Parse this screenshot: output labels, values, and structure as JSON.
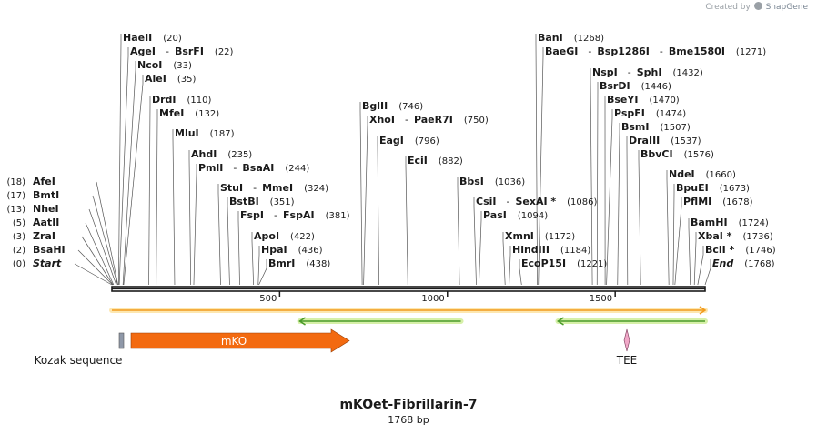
{
  "credit": {
    "prefix": "Created by",
    "brand": "SnapGene",
    "brand_icon": "snapgene-logo-icon"
  },
  "plasmid": {
    "name": "mKOet-Fibrillarin-7",
    "length_label": "1768 bp",
    "length": 1768
  },
  "axis": {
    "ticks": [
      {
        "pos": 500,
        "label": "500"
      },
      {
        "pos": 1000,
        "label": "1000"
      },
      {
        "pos": 1500,
        "label": "1500"
      }
    ]
  },
  "sites": [
    {
      "side": "L",
      "names": [
        "Start"
      ],
      "italic": true,
      "num": "(0)",
      "pos": 0
    },
    {
      "side": "L",
      "names": [
        "BsaHI"
      ],
      "num": "(2)",
      "pos": 2
    },
    {
      "side": "L",
      "names": [
        "ZraI"
      ],
      "num": "(3)",
      "pos": 3
    },
    {
      "side": "L",
      "names": [
        "AatII"
      ],
      "num": "(5)",
      "pos": 5
    },
    {
      "side": "L",
      "names": [
        "NheI"
      ],
      "num": "(13)",
      "pos": 13
    },
    {
      "side": "L",
      "names": [
        "BmtI"
      ],
      "num": "(17)",
      "pos": 17
    },
    {
      "side": "L",
      "names": [
        "AfeI"
      ],
      "num": "(18)",
      "pos": 18
    },
    {
      "side": "R",
      "names": [
        "HaeII"
      ],
      "num": "(20)",
      "pos": 20
    },
    {
      "side": "R",
      "names": [
        "AgeI",
        "BsrFI"
      ],
      "num": "(22)",
      "pos": 22
    },
    {
      "side": "R",
      "names": [
        "NcoI"
      ],
      "num": "(33)",
      "pos": 33
    },
    {
      "side": "R",
      "names": [
        "AleI"
      ],
      "num": "(35)",
      "pos": 35
    },
    {
      "side": "R",
      "names": [
        "DrdI"
      ],
      "num": "(110)",
      "pos": 110
    },
    {
      "side": "R",
      "names": [
        "MfeI"
      ],
      "num": "(132)",
      "pos": 132
    },
    {
      "side": "R",
      "names": [
        "MluI"
      ],
      "num": "(187)",
      "pos": 187
    },
    {
      "side": "R",
      "names": [
        "AhdI"
      ],
      "num": "(235)",
      "pos": 235
    },
    {
      "side": "R",
      "names": [
        "PmlI",
        "BsaAI"
      ],
      "num": "(244)",
      "pos": 244
    },
    {
      "side": "R",
      "names": [
        "StuI",
        "MmeI"
      ],
      "num": "(324)",
      "pos": 324
    },
    {
      "side": "R",
      "names": [
        "BstBI"
      ],
      "num": "(351)",
      "pos": 351
    },
    {
      "side": "R",
      "names": [
        "FspI",
        "FspAI"
      ],
      "num": "(381)",
      "pos": 381
    },
    {
      "side": "R",
      "names": [
        "ApoI"
      ],
      "num": "(422)",
      "pos": 422
    },
    {
      "side": "R",
      "names": [
        "HpaI"
      ],
      "num": "(436)",
      "pos": 436
    },
    {
      "side": "R",
      "names": [
        "BmrI"
      ],
      "num": "(438)",
      "pos": 438
    },
    {
      "side": "R",
      "names": [
        "BglII"
      ],
      "num": "(746)",
      "pos": 746
    },
    {
      "side": "R",
      "names": [
        "XhoI",
        "PaeR7I"
      ],
      "num": "(750)",
      "pos": 750
    },
    {
      "side": "R",
      "names": [
        "EagI"
      ],
      "num": "(796)",
      "pos": 796
    },
    {
      "side": "R",
      "names": [
        "EciI"
      ],
      "num": "(882)",
      "pos": 882
    },
    {
      "side": "R",
      "names": [
        "BbsI"
      ],
      "num": "(1036)",
      "pos": 1036
    },
    {
      "side": "R",
      "names": [
        "CsiI",
        "SexAI *"
      ],
      "num": "(1086)",
      "pos": 1086
    },
    {
      "side": "R",
      "names": [
        "PasI"
      ],
      "num": "(1094)",
      "pos": 1094
    },
    {
      "side": "R",
      "names": [
        "XmnI"
      ],
      "num": "(1172)",
      "pos": 1172
    },
    {
      "side": "R",
      "names": [
        "HindIII"
      ],
      "num": "(1184)",
      "pos": 1184
    },
    {
      "side": "R",
      "names": [
        "EcoP15I"
      ],
      "num": "(1221)",
      "pos": 1221
    },
    {
      "side": "R",
      "names": [
        "BanI"
      ],
      "num": "(1268)",
      "pos": 1268
    },
    {
      "side": "R",
      "names": [
        "BaeGI",
        "Bsp1286I",
        "Bme1580I"
      ],
      "num": "(1271)",
      "pos": 1271
    },
    {
      "side": "R",
      "names": [
        "NspI",
        "SphI"
      ],
      "num": "(1432)",
      "pos": 1432
    },
    {
      "side": "R",
      "names": [
        "BsrDI"
      ],
      "num": "(1446)",
      "pos": 1446
    },
    {
      "side": "R",
      "names": [
        "BseYI"
      ],
      "num": "(1470)",
      "pos": 1470
    },
    {
      "side": "R",
      "names": [
        "PspFI"
      ],
      "num": "(1474)",
      "pos": 1474
    },
    {
      "side": "R",
      "names": [
        "BsmI"
      ],
      "num": "(1507)",
      "pos": 1507
    },
    {
      "side": "R",
      "names": [
        "DraIII"
      ],
      "num": "(1537)",
      "pos": 1537
    },
    {
      "side": "R",
      "names": [
        "BbvCI"
      ],
      "num": "(1576)",
      "pos": 1576
    },
    {
      "side": "R",
      "names": [
        "NdeI"
      ],
      "num": "(1660)",
      "pos": 1660
    },
    {
      "side": "R",
      "names": [
        "BpuEI"
      ],
      "num": "(1673)",
      "pos": 1673
    },
    {
      "side": "R",
      "names": [
        "PflMI"
      ],
      "num": "(1678)",
      "pos": 1678
    },
    {
      "side": "R",
      "names": [
        "BamHI"
      ],
      "num": "(1724)",
      "pos": 1724
    },
    {
      "side": "R",
      "names": [
        "XbaI *"
      ],
      "num": "(1736)",
      "pos": 1736
    },
    {
      "side": "R",
      "names": [
        "BclI *"
      ],
      "num": "(1746)",
      "pos": 1746
    },
    {
      "side": "R",
      "names": [
        "End"
      ],
      "italic": true,
      "num": "(1768)",
      "pos": 1768
    }
  ],
  "features": [
    {
      "id": "orf-forward",
      "kind": "orf",
      "start": 0,
      "end": 1768,
      "direction": "forward",
      "color": "#f29b1d",
      "glow": "#fde7b0"
    },
    {
      "id": "orf-reverse-1",
      "kind": "orf",
      "start": 560,
      "end": 1040,
      "direction": "reverse",
      "color": "#4a9b2a",
      "glow": "#d6f0a8"
    },
    {
      "id": "orf-reverse-2",
      "kind": "orf",
      "start": 1330,
      "end": 1780,
      "direction": "reverse",
      "color": "#4a9b2a",
      "glow": "#d6f0a8"
    },
    {
      "id": "kozak",
      "kind": "box",
      "label": "Kozak sequence",
      "start": 25,
      "end": 40,
      "color": "#8f98a8"
    },
    {
      "id": "mko",
      "kind": "arrow",
      "label": "mKO",
      "start": 60,
      "end": 720,
      "color": "#f36a10",
      "text_color": "#ffffff"
    },
    {
      "id": "tee",
      "kind": "diamond",
      "label": "TEE",
      "start": 1537,
      "end": 1543,
      "color": "#f0a7c7"
    }
  ]
}
